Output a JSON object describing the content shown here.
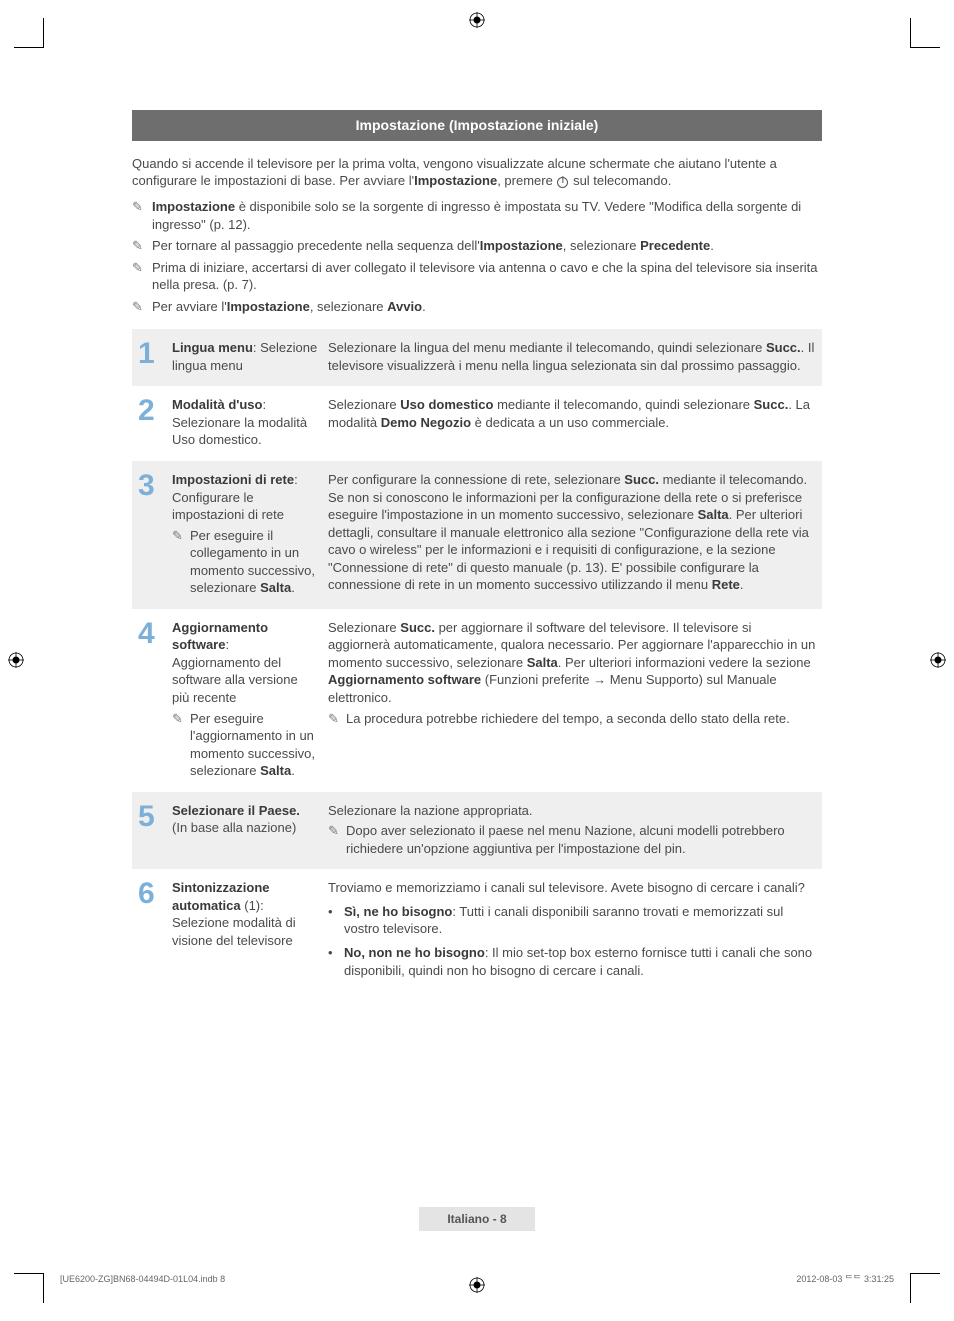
{
  "header": "Impostazione (Impostazione iniziale)",
  "intro_a": "Quando si accende il televisore per la prima volta, vengono visualizzate alcune schermate che aiutano l'utente a configurare le impostazioni di base. Per avviare l'",
  "intro_b": "Impostazione",
  "intro_c": ", premere ",
  "intro_d": " sul telecomando.",
  "notes": [
    {
      "pre": "",
      "bold": "Impostazione",
      "post": " è disponibile solo se la sorgente di ingresso è impostata su TV. Vedere \"Modifica della sorgente di ingresso\" (p. 12)."
    },
    {
      "pre": "Per tornare al passaggio precedente nella sequenza dell'",
      "bold": "Impostazione",
      "post": ", selezionare ",
      "bold2": "Precedente",
      "post2": "."
    },
    {
      "pre": "Prima di iniziare, accertarsi di aver collegato il televisore via antenna o cavo e che la spina del televisore sia inserita nella presa. (p. 7).",
      "bold": "",
      "post": ""
    },
    {
      "pre": "Per avviare l'",
      "bold": "Impostazione",
      "post": ", selezionare ",
      "bold2": "Avvio",
      "post2": "."
    }
  ],
  "steps": [
    {
      "num": "1",
      "title_bold": "Lingua menu",
      "title_rest": ": Selezione lingua menu",
      "desc": "Selezionare la lingua del menu mediante il telecomando, quindi selezionare <b>Succ.</b>. Il televisore visualizzerà i menu nella lingua selezionata sin dal prossimo passaggio."
    },
    {
      "num": "2",
      "title_bold": "Modalità d'uso",
      "title_rest": ": Selezionare la modalità Uso domestico.",
      "desc": "Selezionare <b>Uso domestico</b> mediante il telecomando, quindi selezionare <b>Succ.</b>. La modalità <b>Demo Negozio</b> è dedicata a un uso commerciale."
    },
    {
      "num": "3",
      "title_bold": "Impostazioni di rete",
      "title_rest": ": Configurare le impostazioni di rete",
      "title_note": "Per eseguire il collegamento in un momento successivo, selezionare <b>Salta</b>.",
      "desc": "Per configurare la connessione di rete, selezionare <b>Succ.</b> mediante il telecomando. Se non si conoscono le informazioni per la configurazione della rete o si preferisce eseguire l'impostazione in un momento successivo, selezionare <b>Salta</b>. Per ulteriori dettagli, consultare il manuale elettronico alla sezione \"Configurazione della rete via cavo o wireless\" per le informazioni e i requisiti di configurazione, e la sezione \"Connessione di rete\" di questo manuale (p. 13). E' possibile configurare la connessione di rete in un momento successivo utilizzando il menu <b>Rete</b>."
    },
    {
      "num": "4",
      "title_bold": "Aggiornamento software",
      "title_rest": ": Aggiornamento del software alla versione più recente",
      "title_note": "Per eseguire l'aggiornamento in un momento successivo, selezionare <b>Salta</b>.",
      "desc": "Selezionare <b>Succ.</b> per aggiornare il software del televisore. Il televisore si aggiornerà automaticamente, qualora necessario. Per aggiornare l'apparecchio in un momento successivo, selezionare <b>Salta</b>. Per ulteriori informazioni vedere la sezione <b>Aggiornamento software</b> (Funzioni preferite → Menu Supporto) sul Manuale elettronico.",
      "desc_note": "La procedura potrebbe richiedere del tempo, a seconda dello stato della rete."
    },
    {
      "num": "5",
      "title_bold": "Selezionare il Paese.",
      "title_rest": " (In base alla nazione)",
      "desc": "Selezionare la nazione appropriata.",
      "desc_note": "Dopo aver selezionato il paese nel menu Nazione, alcuni modelli potrebbero richiedere un'opzione aggiuntiva per l'impostazione del pin."
    },
    {
      "num": "6",
      "title_bold": "Sintonizzazione automatica",
      "title_rest": " (1): Selezione modalità di visione del televisore",
      "desc": "Troviamo e memorizziamo i canali sul televisore. Avete bisogno di cercare i canali?",
      "bullets": [
        {
          "bold": "Sì, ne ho bisogno",
          "text": ": Tutti i canali disponibili saranno trovati e memorizzati sul vostro televisore."
        },
        {
          "bold": "No, non ne ho bisogno",
          "text": ": Il mio set-top box esterno fornisce tutti i canali che sono disponibili, quindi non ho bisogno di cercare i canali."
        }
      ]
    }
  ],
  "pageFooter": "Italiano - 8",
  "docFooterLeft": "[UE6200-ZG]BN68-04494D-01L04.indb   8",
  "docFooterRight": "2012-08-03   ᄃᄃ 3:31:25",
  "colors": {
    "stepNum": "#7db0d8",
    "headerBg": "#6e6e6e",
    "altBg": "#efefef"
  }
}
